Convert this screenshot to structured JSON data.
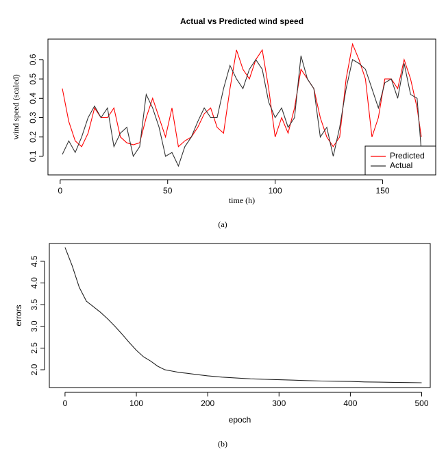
{
  "chart_data": [
    {
      "type": "line",
      "title": "Actual vs Predicted wind speed",
      "xlabel": "time (h)",
      "ylabel": "wind speed (scaled)",
      "x": [
        1,
        4,
        7,
        10,
        13,
        16,
        19,
        22,
        25,
        28,
        31,
        34,
        37,
        40,
        43,
        46,
        49,
        52,
        55,
        58,
        61,
        64,
        67,
        70,
        73,
        76,
        79,
        82,
        85,
        88,
        91,
        94,
        97,
        100,
        103,
        106,
        109,
        112,
        115,
        118,
        121,
        124,
        127,
        130,
        133,
        136,
        139,
        142,
        145,
        148,
        151,
        154,
        157,
        160,
        163,
        166,
        168
      ],
      "series": [
        {
          "name": "Predicted",
          "color": "#ff0000",
          "values": [
            0.45,
            0.28,
            0.18,
            0.15,
            0.22,
            0.35,
            0.3,
            0.3,
            0.35,
            0.2,
            0.17,
            0.16,
            0.17,
            0.3,
            0.4,
            0.3,
            0.2,
            0.35,
            0.15,
            0.18,
            0.2,
            0.25,
            0.32,
            0.35,
            0.25,
            0.22,
            0.45,
            0.65,
            0.55,
            0.5,
            0.6,
            0.65,
            0.45,
            0.2,
            0.3,
            0.22,
            0.35,
            0.55,
            0.5,
            0.45,
            0.3,
            0.2,
            0.15,
            0.2,
            0.5,
            0.68,
            0.6,
            0.5,
            0.2,
            0.3,
            0.5,
            0.5,
            0.45,
            0.6,
            0.5,
            0.35,
            0.2
          ]
        },
        {
          "name": "Actual",
          "color": "#333333",
          "values": [
            0.11,
            0.18,
            0.12,
            0.2,
            0.3,
            0.36,
            0.3,
            0.35,
            0.15,
            0.22,
            0.25,
            0.1,
            0.15,
            0.42,
            0.35,
            0.25,
            0.1,
            0.12,
            0.05,
            0.15,
            0.2,
            0.28,
            0.35,
            0.3,
            0.3,
            0.45,
            0.57,
            0.5,
            0.45,
            0.55,
            0.6,
            0.55,
            0.38,
            0.3,
            0.35,
            0.25,
            0.3,
            0.62,
            0.5,
            0.45,
            0.2,
            0.25,
            0.1,
            0.25,
            0.45,
            0.6,
            0.58,
            0.55,
            0.45,
            0.35,
            0.48,
            0.5,
            0.4,
            0.58,
            0.42,
            0.4,
            0.13
          ]
        }
      ],
      "xlim": [
        -5.68,
        174.68
      ],
      "ylim": [
        0.004,
        0.706
      ],
      "xticks": [
        0,
        50,
        100,
        150
      ],
      "yticks": [
        0.1,
        0.2,
        0.3,
        0.4,
        0.5,
        0.6
      ],
      "legend": "bottomright"
    },
    {
      "type": "line",
      "xlabel": "epoch",
      "ylabel": "errors",
      "x": [
        0,
        10,
        20,
        30,
        40,
        50,
        60,
        70,
        80,
        90,
        100,
        110,
        120,
        130,
        140,
        150,
        160,
        170,
        180,
        190,
        200,
        220,
        240,
        260,
        280,
        300,
        320,
        340,
        360,
        380,
        400,
        420,
        440,
        460,
        480,
        500
      ],
      "series": [
        {
          "color": "#222222",
          "values": [
            4.82,
            4.4,
            3.9,
            3.58,
            3.45,
            3.32,
            3.17,
            3.0,
            2.82,
            2.63,
            2.45,
            2.3,
            2.2,
            2.08,
            2.0,
            1.97,
            1.94,
            1.92,
            1.9,
            1.88,
            1.86,
            1.83,
            1.81,
            1.79,
            1.78,
            1.77,
            1.76,
            1.75,
            1.74,
            1.735,
            1.73,
            1.72,
            1.715,
            1.71,
            1.705,
            1.7
          ]
        }
      ],
      "xlim": [
        -22,
        512
      ],
      "ylim": [
        1.59,
        4.91
      ],
      "xticks": [
        0,
        100,
        200,
        300,
        400,
        500
      ],
      "yticks": [
        {
          "value": 2,
          "label": "2.0"
        },
        2.5,
        {
          "value": 3,
          "label": "3.0"
        },
        3.5,
        {
          "value": 4,
          "label": "4.0"
        },
        4.5
      ]
    }
  ],
  "captions": [
    "(a)",
    "(b)"
  ]
}
